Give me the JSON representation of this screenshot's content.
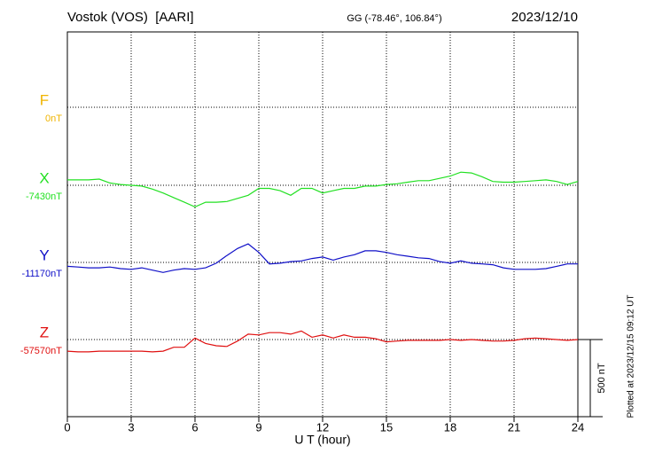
{
  "chart_data": {
    "type": "line",
    "title": "Vostok (VOS)  [AARI]",
    "subtitle": "GG (-78.46°, 106.84°)",
    "date": "2023/12/10",
    "xlabel": "U T (hour)",
    "note": "Plotted at 2023/12/15 09:12 UT",
    "scale_bar": {
      "value": 500,
      "label": "500 nT"
    },
    "xlim": [
      0,
      24
    ],
    "xticks": [
      0,
      3,
      6,
      9,
      12,
      15,
      18,
      21,
      24
    ],
    "grid": true,
    "x": [
      0,
      0.5,
      1,
      1.5,
      2,
      2.5,
      3,
      3.5,
      4,
      4.5,
      5,
      5.5,
      6,
      6.5,
      7,
      7.5,
      8,
      8.5,
      9,
      9.5,
      10,
      10.5,
      11,
      11.5,
      12,
      12.5,
      13,
      13.5,
      14,
      14.5,
      15,
      15.5,
      16,
      16.5,
      17,
      17.5,
      18,
      18.5,
      19,
      19.5,
      20,
      20.5,
      21,
      21.5,
      22,
      22.5,
      23,
      23.5,
      24
    ],
    "series": [
      {
        "name": "F",
        "color": "#f0b400",
        "baseline": {
          "value": 0,
          "label": "0nT"
        }
      },
      {
        "name": "X",
        "color": "#22e022",
        "baseline": {
          "value": -7430,
          "label": "-7430nT"
        },
        "values": [
          -7395,
          -7395,
          -7395,
          -7390,
          -7415,
          -7425,
          -7430,
          -7435,
          -7455,
          -7480,
          -7510,
          -7540,
          -7570,
          -7540,
          -7540,
          -7535,
          -7515,
          -7495,
          -7450,
          -7450,
          -7465,
          -7495,
          -7450,
          -7450,
          -7480,
          -7465,
          -7450,
          -7450,
          -7435,
          -7435,
          -7425,
          -7420,
          -7410,
          -7400,
          -7400,
          -7385,
          -7370,
          -7345,
          -7350,
          -7375,
          -7405,
          -7410,
          -7410,
          -7405,
          -7400,
          -7395,
          -7405,
          -7425,
          -7405
        ]
      },
      {
        "name": "Y",
        "color": "#1010c8",
        "baseline": {
          "value": -11170,
          "label": "-11170nT"
        },
        "values": [
          -11195,
          -11200,
          -11205,
          -11205,
          -11200,
          -11210,
          -11215,
          -11205,
          -11220,
          -11235,
          -11220,
          -11210,
          -11215,
          -11205,
          -11175,
          -11125,
          -11080,
          -11050,
          -11105,
          -11180,
          -11175,
          -11165,
          -11160,
          -11145,
          -11135,
          -11155,
          -11135,
          -11120,
          -11095,
          -11095,
          -11105,
          -11120,
          -11130,
          -11140,
          -11145,
          -11165,
          -11175,
          -11160,
          -11175,
          -11180,
          -11185,
          -11205,
          -11215,
          -11215,
          -11215,
          -11210,
          -11195,
          -11180,
          -11180
        ]
      },
      {
        "name": "Z",
        "color": "#e01010",
        "baseline": {
          "value": -57570,
          "label": "-57570nT"
        },
        "values": [
          -57645,
          -57650,
          -57650,
          -57645,
          -57645,
          -57645,
          -57645,
          -57645,
          -57650,
          -57645,
          -57620,
          -57620,
          -57560,
          -57595,
          -57610,
          -57615,
          -57580,
          -57535,
          -57540,
          -57525,
          -57525,
          -57535,
          -57515,
          -57555,
          -57540,
          -57560,
          -57540,
          -57555,
          -57555,
          -57565,
          -57585,
          -57580,
          -57575,
          -57575,
          -57575,
          -57575,
          -57570,
          -57575,
          -57570,
          -57575,
          -57580,
          -57580,
          -57575,
          -57565,
          -57560,
          -57565,
          -57570,
          -57575,
          -57570
        ]
      }
    ]
  }
}
